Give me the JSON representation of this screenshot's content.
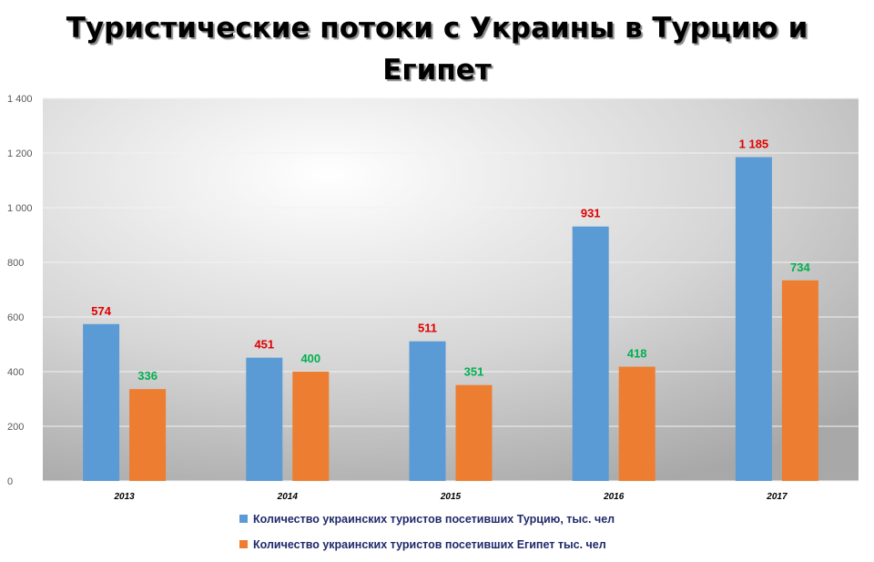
{
  "title_line1": "Туристические потоки с Украины в Турцию и",
  "title_line2": "Египет",
  "chart_data": {
    "type": "bar",
    "title": "Туристические потоки с Украины в Турцию и Египет",
    "categories": [
      "2013",
      "2014",
      "2015",
      "2016",
      "2017"
    ],
    "series": [
      {
        "name": "Количество украинских туристов посетивших Турцию, тыс. чел",
        "values": [
          574,
          451,
          511,
          931,
          1185
        ],
        "labels": [
          "574",
          "451",
          "511",
          "931",
          "1 185"
        ],
        "color": "#5b9bd5",
        "label_color": "#e00000"
      },
      {
        "name": "Количество украинских туристов посетивших Египет тыс. чел",
        "values": [
          336,
          400,
          351,
          418,
          734
        ],
        "labels": [
          "336",
          "400",
          "351",
          "418",
          "734"
        ],
        "color": "#ed7d31",
        "label_color": "#00b050"
      }
    ],
    "ylim": [
      0,
      1400
    ],
    "yticks": [
      0,
      200,
      400,
      600,
      800,
      1000,
      1200,
      1400
    ],
    "ytick_labels": [
      "0",
      "200",
      "400",
      "600",
      "800",
      "1 000",
      "1 200",
      "1 400"
    ],
    "grid": true,
    "legend_position": "bottom",
    "xlabel": "",
    "ylabel": ""
  }
}
